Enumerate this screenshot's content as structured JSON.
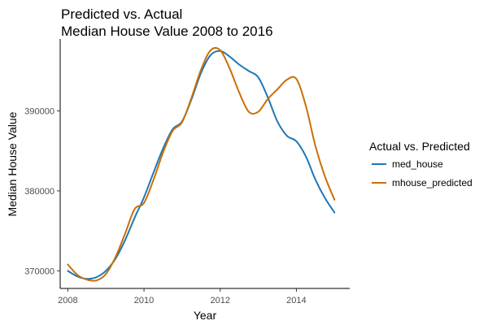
{
  "chart_data": {
    "type": "line",
    "title_lines": [
      "Predicted vs. Actual",
      "Median House Value 2008 to 2016"
    ],
    "xlabel": "Year",
    "ylabel": "Median House Value",
    "xlim": [
      2007.8,
      2015.4
    ],
    "ylim": [
      367800,
      399000
    ],
    "x_ticks": [
      2008,
      2010,
      2012,
      2014
    ],
    "x_tick_labels": [
      "2008",
      "2010",
      "2012",
      "2014"
    ],
    "y_ticks": [
      370000,
      380000,
      390000
    ],
    "y_tick_labels": [
      "370000",
      "380000",
      "390000"
    ],
    "grid": false,
    "legend": {
      "title": "Actual vs. Predicted",
      "position": "right"
    },
    "series": [
      {
        "name": "med_house",
        "color": "#1f77b4",
        "x": [
          2008.0,
          2008.25,
          2008.5,
          2008.75,
          2009.0,
          2009.25,
          2009.5,
          2009.75,
          2010.0,
          2010.25,
          2010.5,
          2010.75,
          2011.0,
          2011.25,
          2011.5,
          2011.75,
          2012.0,
          2012.25,
          2012.5,
          2012.75,
          2013.0,
          2013.25,
          2013.5,
          2013.75,
          2014.0,
          2014.25,
          2014.5,
          2014.75,
          2015.0
        ],
        "y": [
          370000,
          369300,
          369000,
          369200,
          370000,
          371500,
          373800,
          376600,
          379200,
          382300,
          385300,
          387700,
          388700,
          391500,
          394800,
          397000,
          397500,
          396800,
          395800,
          395000,
          394200,
          391700,
          388700,
          386900,
          386200,
          384300,
          381400,
          379100,
          377300
        ]
      },
      {
        "name": "mhouse_predicted",
        "color": "#c96f06",
        "x": [
          2008.0,
          2008.25,
          2008.5,
          2008.75,
          2009.0,
          2009.25,
          2009.5,
          2009.75,
          2010.0,
          2010.25,
          2010.5,
          2010.75,
          2011.0,
          2011.25,
          2011.5,
          2011.75,
          2012.0,
          2012.25,
          2012.5,
          2012.75,
          2013.0,
          2013.25,
          2013.5,
          2013.75,
          2014.0,
          2014.25,
          2014.5,
          2014.75,
          2015.0
        ],
        "y": [
          370800,
          369500,
          368900,
          368800,
          369600,
          371700,
          374600,
          377700,
          378500,
          381400,
          384800,
          387500,
          388600,
          391700,
          395200,
          397600,
          397600,
          395300,
          392300,
          389900,
          389900,
          391500,
          392700,
          393900,
          394000,
          390600,
          385600,
          381800,
          378900
        ]
      }
    ]
  }
}
